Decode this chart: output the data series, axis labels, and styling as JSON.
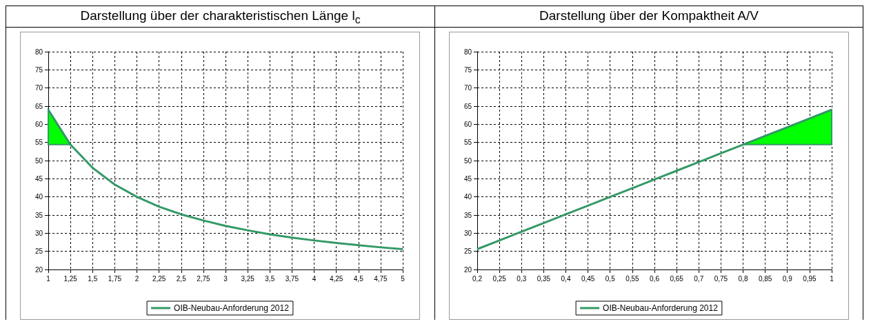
{
  "chart_data": [
    {
      "type": "line",
      "title": "Darstellung über der charakteristischen Länge l$_{c}$",
      "xlim": [
        1,
        5
      ],
      "xticks": [
        1,
        {
          "value": 1.25,
          "label": "1,25"
        },
        {
          "value": 1.5,
          "label": "1,5"
        },
        {
          "value": 1.75,
          "label": "1,75"
        },
        2,
        {
          "value": 2.25,
          "label": "2,25"
        },
        {
          "value": 2.5,
          "label": "2,5"
        },
        {
          "value": 2.75,
          "label": "2,75"
        },
        3,
        {
          "value": 3.25,
          "label": "3,25"
        },
        {
          "value": 3.5,
          "label": "3,5"
        },
        {
          "value": 3.75,
          "label": "3,75"
        },
        4,
        {
          "value": 4.25,
          "label": "4,25"
        },
        {
          "value": 4.5,
          "label": "4,5"
        },
        {
          "value": 4.75,
          "label": "4,75"
        },
        5
      ],
      "ylim": [
        20,
        80
      ],
      "yticks": [
        20,
        25,
        30,
        35,
        40,
        45,
        50,
        55,
        60,
        65,
        70,
        75,
        80
      ],
      "grid": true,
      "legend": "bottom",
      "marker": "none",
      "series": [
        {
          "name": "OIB-Neubau-Anforderung 2012",
          "color": "#339966",
          "x": [
            1,
            1.25,
            1.5,
            1.75,
            2,
            2.25,
            2.5,
            2.75,
            3,
            3.25,
            3.5,
            3.75,
            4,
            4.25,
            4.5,
            4.75,
            5
          ],
          "values": [
            64,
            54.4,
            48,
            43.4,
            40,
            37.3,
            35.2,
            33.5,
            32,
            30.8,
            29.7,
            28.8,
            28,
            27.3,
            26.7,
            26.1,
            25.6
          ],
          "lower": [
            54.4,
            54.4,
            null,
            null,
            null,
            null,
            null,
            null,
            null,
            null,
            null,
            null,
            null,
            null,
            null,
            null,
            null
          ],
          "upper": [
            64,
            54.4,
            null,
            null,
            null,
            null,
            null,
            null,
            null,
            null,
            null,
            null,
            null,
            null,
            null,
            null,
            null
          ]
        }
      ]
    },
    {
      "type": "line",
      "title": "Darstellung über der Kompaktheit A/V",
      "xlim": [
        0.2,
        1
      ],
      "xticks": [
        {
          "value": 0.2,
          "label": "0,2"
        },
        {
          "value": 0.25,
          "label": "0,25"
        },
        {
          "value": 0.3,
          "label": "0,3"
        },
        {
          "value": 0.35,
          "label": "0,35"
        },
        {
          "value": 0.4,
          "label": "0,4"
        },
        {
          "value": 0.45,
          "label": "0,45"
        },
        {
          "value": 0.5,
          "label": "0,5"
        },
        {
          "value": 0.55,
          "label": "0,55"
        },
        {
          "value": 0.6,
          "label": "0,6"
        },
        {
          "value": 0.65,
          "label": "0,65"
        },
        {
          "value": 0.7,
          "label": "0,7"
        },
        {
          "value": 0.75,
          "label": "0,75"
        },
        {
          "value": 0.8,
          "label": "0,8"
        },
        {
          "value": 0.85,
          "label": "0,85"
        },
        {
          "value": 0.9,
          "label": "0,9"
        },
        {
          "value": 0.95,
          "label": "0,95"
        },
        1
      ],
      "ylim": [
        20,
        80
      ],
      "yticks": [
        20,
        25,
        30,
        35,
        40,
        45,
        50,
        55,
        60,
        65,
        70,
        75,
        80
      ],
      "grid": true,
      "legend": "bottom",
      "marker": "none",
      "series": [
        {
          "name": "OIB-Neubau-Anforderung 2012",
          "color": "#339966",
          "x": [
            0.2,
            0.25,
            0.3,
            0.35,
            0.4,
            0.45,
            0.5,
            0.55,
            0.6,
            0.65,
            0.7,
            0.75,
            0.8,
            0.85,
            0.9,
            0.95,
            1
          ],
          "values": [
            25.6,
            28,
            30.4,
            32.8,
            35.2,
            37.6,
            40,
            42.4,
            44.8,
            47.2,
            49.6,
            52,
            54.4,
            56.8,
            59.2,
            61.6,
            64
          ],
          "lower": [
            null,
            null,
            null,
            null,
            null,
            null,
            null,
            null,
            null,
            null,
            null,
            null,
            54.4,
            54.4,
            54.4,
            54.4,
            54.4
          ],
          "upper": [
            null,
            null,
            null,
            null,
            null,
            null,
            null,
            null,
            null,
            null,
            null,
            null,
            54.4,
            56.8,
            59.2,
            61.6,
            64
          ]
        }
      ]
    }
  ]
}
